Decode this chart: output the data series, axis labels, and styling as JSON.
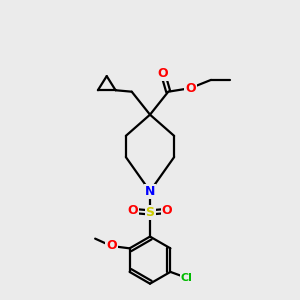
{
  "bg_color": "#ebebeb",
  "bond_color": "#000000",
  "atom_colors": {
    "O": "#ff0000",
    "N": "#0000ff",
    "S": "#cccc00",
    "Cl": "#00bb00",
    "C": "#000000"
  },
  "lw": 1.6
}
